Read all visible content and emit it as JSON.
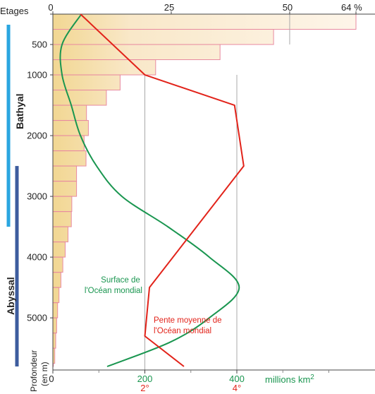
{
  "chart_data": {
    "type": "bar",
    "corner_label": "Etages",
    "depth_label_lines": [
      "Profondeur",
      "(en m)"
    ],
    "top_axis": {
      "range": [
        0,
        64
      ],
      "tick_values": [
        0,
        25,
        50
      ],
      "tick_labels": [
        "0",
        "25",
        "50"
      ],
      "end_label": "64 %"
    },
    "left_axis": {
      "range": [
        0,
        5800
      ],
      "tick_values": [
        0,
        500,
        1000,
        2000,
        3000,
        4000,
        5000
      ],
      "tick_labels": [
        "0",
        "500",
        "1000",
        "2000",
        "3000",
        "4000",
        "5000"
      ]
    },
    "bottom_axis": {
      "range": [
        0,
        700
      ],
      "tick_values": [
        0,
        200,
        400
      ],
      "tick_labels": [
        "0",
        "200",
        "400"
      ],
      "unit_text": "millions km",
      "unit_superscript": "2",
      "slope_tick_values": [
        2,
        4
      ],
      "slope_tick_labels": [
        "2°",
        "4°"
      ]
    },
    "zones": [
      {
        "name": "Bathyal",
        "from": 0,
        "to": 3500,
        "color": "#2aa6e0"
      },
      {
        "name": "Abyssal",
        "from": 2500,
        "to": 5800,
        "color": "#3d5c9e"
      }
    ],
    "bars": {
      "name": "Etages",
      "top_depths": [
        0,
        250,
        500,
        750,
        1000,
        1250,
        1500,
        1750,
        2000,
        2250,
        2500,
        2750,
        3000,
        3250,
        3500,
        3750,
        4000,
        4250,
        4500,
        4750,
        5000,
        5250,
        5500,
        5750
      ],
      "bottom_depths": [
        250,
        500,
        750,
        1000,
        1250,
        1500,
        1750,
        2000,
        2250,
        2500,
        2750,
        3000,
        3250,
        3500,
        3750,
        4000,
        4250,
        4500,
        4750,
        5000,
        5250,
        5500,
        5750,
        5800
      ],
      "values": [
        64,
        46.6,
        35.3,
        21.7,
        14.2,
        11.3,
        7.1,
        7.5,
        6.6,
        7.0,
        5.0,
        5.0,
        4.0,
        3.9,
        3.2,
        2.6,
        2.1,
        1.7,
        1.3,
        1.0,
        0.8,
        0.6,
        0.4,
        0.1
      ]
    },
    "series": [
      {
        "name": "Surface de l'Océan mondial",
        "label_lines": [
          "Surface de",
          "l'Océan mondial"
        ],
        "color": "#1a9650",
        "units": "millions km2",
        "depth": [
          0,
          500,
          1000,
          1500,
          2000,
          2500,
          3000,
          3500,
          4000,
          4500,
          5000,
          5400,
          5800
        ],
        "values": [
          62,
          20,
          20,
          40,
          60,
          95,
          150,
          250,
          340,
          405,
          340,
          255,
          118
        ]
      },
      {
        "name": "Pente moyenne de l'Océan mondial",
        "label_lines": [
          "Pente moyenne de",
          "l'Océan mondial"
        ],
        "color": "#e2231a",
        "units": "degrés",
        "depth": [
          0,
          1000,
          1500,
          2500,
          4500,
          5300,
          5800
        ],
        "values": [
          0.6,
          2.0,
          3.95,
          4.15,
          2.1,
          2.0,
          2.85
        ]
      }
    ],
    "colors": {
      "bar_stroke": "#e88aa0",
      "fill_dark": "#e8c35a",
      "fill_light": "#fbeeda",
      "grid": "#a9a9a9"
    }
  }
}
